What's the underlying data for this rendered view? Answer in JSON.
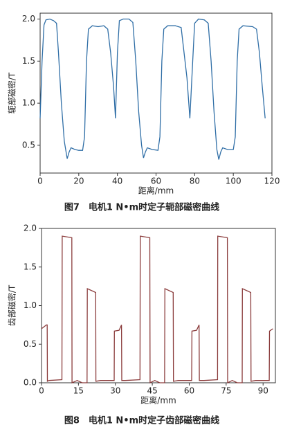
{
  "chart_data": [
    {
      "type": "line",
      "y_label": "轭部磁密/T",
      "x_label": "距离/mm",
      "caption": "图7　电机1 N•m时定子轭部磁密曲线",
      "color": "#2f6ea6",
      "xlim": [
        0,
        120
      ],
      "xticks": [
        0,
        20,
        40,
        60,
        80,
        100,
        120
      ],
      "ylim": [
        0.17,
        2.07
      ],
      "yticks": [
        0.5,
        {
          "value": 1,
          "label": "1.0"
        },
        1.5,
        {
          "value": 2,
          "label": "2.0"
        }
      ],
      "x": [
        0,
        1,
        2,
        3,
        5,
        7,
        8.5,
        9.5,
        11,
        12.5,
        14,
        15,
        16,
        18,
        20,
        22,
        23,
        24,
        25,
        27,
        30,
        33,
        35,
        36.5,
        38,
        39,
        40,
        41,
        43,
        46,
        48,
        49.5,
        51,
        52.5,
        53.5,
        54.5,
        55.5,
        58,
        61,
        62,
        63,
        64,
        66,
        70,
        73,
        74,
        76,
        77.5,
        79,
        80,
        82,
        85,
        87,
        88.5,
        90,
        91.5,
        92.5,
        93.5,
        94.5,
        97,
        100,
        101,
        102,
        103,
        105,
        110,
        112,
        113.5,
        115,
        116.5
      ],
      "values": [
        0.82,
        1.5,
        1.93,
        1.99,
        2.0,
        1.98,
        1.95,
        1.6,
        1.0,
        0.55,
        0.34,
        0.42,
        0.47,
        0.45,
        0.44,
        0.44,
        0.6,
        1.5,
        1.88,
        1.92,
        1.91,
        1.92,
        1.88,
        1.6,
        1.2,
        0.82,
        1.6,
        1.98,
        2.0,
        2.0,
        1.96,
        1.5,
        0.9,
        0.5,
        0.35,
        0.42,
        0.47,
        0.45,
        0.44,
        0.6,
        1.5,
        1.88,
        1.92,
        1.92,
        1.9,
        1.7,
        1.3,
        0.82,
        1.5,
        1.95,
        2.0,
        1.99,
        1.95,
        1.5,
        0.9,
        0.45,
        0.33,
        0.42,
        0.47,
        0.45,
        0.45,
        0.6,
        1.5,
        1.88,
        1.92,
        1.91,
        1.88,
        1.6,
        1.2,
        0.82
      ]
    },
    {
      "type": "line",
      "y_label": "齿部磁密/T",
      "x_label": "距离/mm",
      "caption": "图8　电机1 N•m时定子齿部磁密曲线",
      "color": "#8a3b3b",
      "xlim": [
        0,
        95
      ],
      "xticks": [
        0,
        15,
        30,
        45,
        60,
        75,
        90
      ],
      "ylim": [
        0,
        2
      ],
      "yticks": [
        {
          "value": 0,
          "label": "0.0"
        },
        0.5,
        {
          "value": 1,
          "label": "1.0"
        },
        1.5,
        {
          "value": 2,
          "label": "2.0"
        }
      ],
      "x": [
        0,
        2,
        2.3,
        2.4,
        3,
        8.3,
        8.4,
        12.3,
        12.4,
        14.5,
        16.5,
        18.5,
        18.6,
        22,
        22.1,
        24,
        29.5,
        29.6,
        31.5,
        32.5,
        32.6,
        34,
        40,
        40.1,
        44,
        44.1,
        46,
        48,
        50,
        50.1,
        53.5,
        53.6,
        55.5,
        61,
        61.1,
        63,
        64,
        64.1,
        66,
        71.5,
        71.6,
        75.5,
        75.6,
        77.5,
        79.5,
        81.5,
        81.6,
        85,
        85.1,
        87,
        92.5,
        92.6,
        94
      ],
      "values": [
        0.7,
        0.75,
        0.75,
        0.02,
        0.03,
        0.04,
        1.9,
        1.88,
        0.0,
        0.03,
        0.0,
        0.0,
        1.22,
        1.17,
        0.02,
        0.03,
        0.03,
        0.67,
        0.68,
        0.75,
        0.03,
        0.03,
        0.04,
        1.9,
        1.88,
        0.0,
        0.03,
        0.0,
        0.0,
        1.22,
        1.17,
        0.02,
        0.03,
        0.03,
        0.67,
        0.68,
        0.75,
        0.03,
        0.03,
        0.04,
        1.9,
        1.88,
        0.0,
        0.03,
        0.0,
        0.0,
        1.22,
        1.17,
        0.02,
        0.03,
        0.03,
        0.67,
        0.7
      ]
    }
  ]
}
